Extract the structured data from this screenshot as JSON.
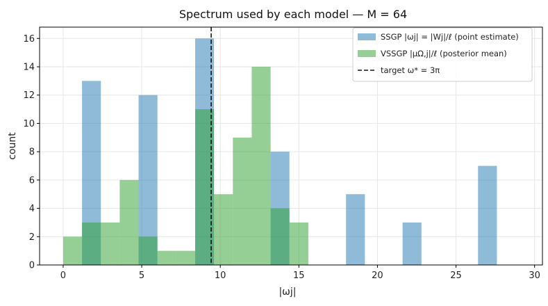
{
  "chart_data": {
    "type": "bar",
    "title": "Spectrum used by each model — M = 64",
    "xlabel": "|ωj|",
    "ylabel": "count",
    "xlim": [
      -1.5,
      30.5
    ],
    "ylim": [
      0,
      16.8
    ],
    "xticks": [
      0,
      5,
      10,
      15,
      20,
      25,
      30
    ],
    "yticks": [
      0,
      2,
      4,
      6,
      8,
      10,
      12,
      14,
      16
    ],
    "grid": true,
    "legend_position": "top-right",
    "colors": {
      "ssgp": "#1f77b4",
      "vssgp": "#2ca02c",
      "target": "#000000"
    },
    "series": [
      {
        "name": "SSGP |ωj| = |Wj|/ℓ (point estimate)",
        "color": "#1f77b4",
        "bins": [
          {
            "x0": 1.2,
            "x1": 2.4,
            "count": 13
          },
          {
            "x0": 4.8,
            "x1": 6.0,
            "count": 12
          },
          {
            "x0": 8.4,
            "x1": 9.6,
            "count": 16
          },
          {
            "x0": 13.2,
            "x1": 14.4,
            "count": 8
          },
          {
            "x0": 18.0,
            "x1": 19.2,
            "count": 5
          },
          {
            "x0": 21.6,
            "x1": 22.8,
            "count": 3
          },
          {
            "x0": 26.4,
            "x1": 27.6,
            "count": 7
          }
        ]
      },
      {
        "name": "VSSGP |μΩ,j|/ℓ (posterior mean)",
        "color": "#2ca02c",
        "bins": [
          {
            "x0": 0.0,
            "x1": 1.2,
            "count": 2
          },
          {
            "x0": 1.2,
            "x1": 2.4,
            "count": 3
          },
          {
            "x0": 2.4,
            "x1": 3.6,
            "count": 3
          },
          {
            "x0": 3.6,
            "x1": 4.8,
            "count": 6
          },
          {
            "x0": 4.8,
            "x1": 6.0,
            "count": 2
          },
          {
            "x0": 6.0,
            "x1": 7.2,
            "count": 1
          },
          {
            "x0": 7.2,
            "x1": 8.4,
            "count": 1
          },
          {
            "x0": 8.4,
            "x1": 9.6,
            "count": 11
          },
          {
            "x0": 9.6,
            "x1": 10.8,
            "count": 5
          },
          {
            "x0": 10.8,
            "x1": 12.0,
            "count": 9
          },
          {
            "x0": 12.0,
            "x1": 13.2,
            "count": 14
          },
          {
            "x0": 13.2,
            "x1": 14.4,
            "count": 4
          },
          {
            "x0": 14.4,
            "x1": 15.6,
            "count": 3
          }
        ]
      }
    ],
    "reference_line": {
      "name": "target ω* = 3π",
      "x": 9.42,
      "style": "dashed"
    }
  }
}
